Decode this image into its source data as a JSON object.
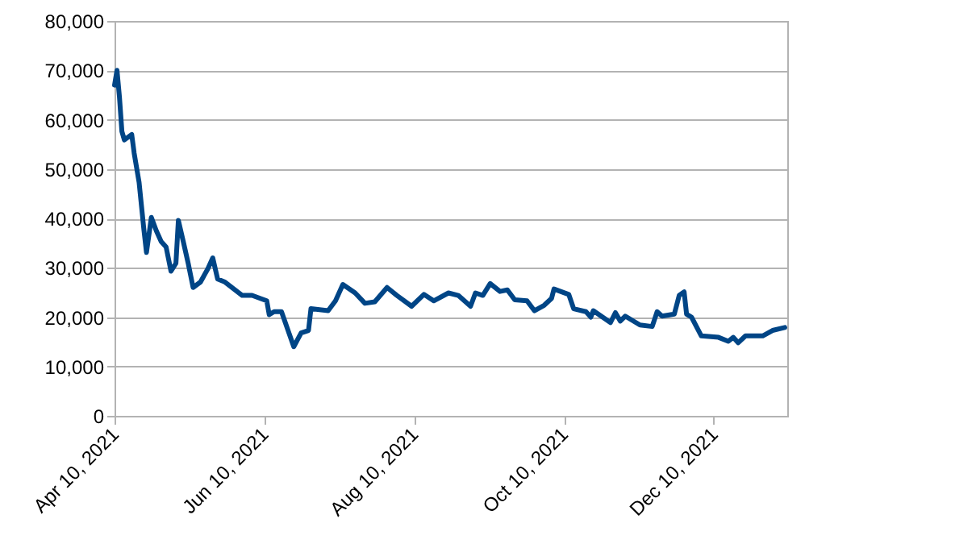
{
  "chart_data": {
    "type": "line",
    "x": [
      "2021-04-10",
      "2021-04-11",
      "2021-04-12",
      "2021-04-13",
      "2021-04-14",
      "2021-04-17",
      "2021-04-18",
      "2021-04-20",
      "2021-04-22",
      "2021-04-23",
      "2021-04-25",
      "2021-04-27",
      "2021-04-29",
      "2021-05-01",
      "2021-05-03",
      "2021-05-05",
      "2021-05-06",
      "2021-05-08",
      "2021-05-10",
      "2021-05-12",
      "2021-05-15",
      "2021-05-18",
      "2021-05-20",
      "2021-05-22",
      "2021-05-25",
      "2021-06-01",
      "2021-06-05",
      "2021-06-11",
      "2021-06-12",
      "2021-06-14",
      "2021-06-17",
      "2021-06-22",
      "2021-06-25",
      "2021-06-28",
      "2021-06-29",
      "2021-07-06",
      "2021-07-09",
      "2021-07-12",
      "2021-07-17",
      "2021-07-21",
      "2021-07-25",
      "2021-07-30",
      "2021-08-03",
      "2021-08-09",
      "2021-08-14",
      "2021-08-18",
      "2021-08-24",
      "2021-08-28",
      "2021-09-02",
      "2021-09-04",
      "2021-09-07",
      "2021-09-10",
      "2021-09-14",
      "2021-09-17",
      "2021-09-20",
      "2021-09-25",
      "2021-09-28",
      "2021-10-02",
      "2021-10-05",
      "2021-10-06",
      "2021-10-12",
      "2021-10-14",
      "2021-10-19",
      "2021-10-21",
      "2021-10-22",
      "2021-10-29",
      "2021-10-31",
      "2021-11-02",
      "2021-11-04",
      "2021-11-10",
      "2021-11-15",
      "2021-11-17",
      "2021-11-19",
      "2021-11-24",
      "2021-11-26",
      "2021-11-28",
      "2021-11-29",
      "2021-12-01",
      "2021-12-05",
      "2021-12-12",
      "2021-12-16",
      "2021-12-18",
      "2021-12-20",
      "2021-12-23",
      "2021-12-30",
      "2022-01-03",
      "2022-01-08"
    ],
    "series": [
      {
        "color": "#004586",
        "values": [
          67000,
          70000,
          64600,
          57600,
          55900,
          57000,
          53200,
          47300,
          37500,
          33100,
          40200,
          37500,
          35300,
          34200,
          29300,
          30900,
          39600,
          35300,
          30900,
          26000,
          27100,
          29800,
          32000,
          27700,
          27100,
          24400,
          24400,
          23300,
          20500,
          21100,
          21100,
          14000,
          16800,
          17300,
          21700,
          21300,
          23300,
          26600,
          24900,
          22800,
          23100,
          26000,
          24400,
          22200,
          24600,
          23300,
          24900,
          24400,
          22200,
          24900,
          24400,
          26800,
          25200,
          25500,
          23500,
          23300,
          21300,
          22400,
          23800,
          25700,
          24600,
          21700,
          21100,
          20000,
          21300,
          18900,
          20900,
          19200,
          20200,
          18400,
          18100,
          21100,
          20200,
          20600,
          24400,
          25100,
          20600,
          20000,
          16200,
          15900,
          15100,
          15900,
          14800,
          16200,
          16200,
          17300,
          17900
        ]
      }
    ],
    "xlim": [
      "2021-04-10",
      "2022-01-09"
    ],
    "xticks": [
      {
        "value": "2021-04-10",
        "label": "Apr 10, 2021"
      },
      {
        "value": "2021-06-10",
        "label": "Jun 10, 2021"
      },
      {
        "value": "2021-08-10",
        "label": "Aug 10, 2021"
      },
      {
        "value": "2021-10-10",
        "label": "Oct 10, 2021"
      },
      {
        "value": "2021-12-10",
        "label": "Dec 10, 2021"
      }
    ],
    "ylim": [
      0,
      80000
    ],
    "yticks": [
      0,
      {
        "value": 10000,
        "label": "10,000"
      },
      {
        "value": 20000,
        "label": "20,000"
      },
      {
        "value": 30000,
        "label": "30,000"
      },
      {
        "value": 40000,
        "label": "40,000"
      },
      {
        "value": 50000,
        "label": "50,000"
      },
      {
        "value": 60000,
        "label": "60,000"
      },
      {
        "value": 70000,
        "label": "70,000"
      },
      {
        "value": 80000,
        "label": "80,000"
      }
    ],
    "grid": "y",
    "marker": "none",
    "line_style": "solid"
  }
}
